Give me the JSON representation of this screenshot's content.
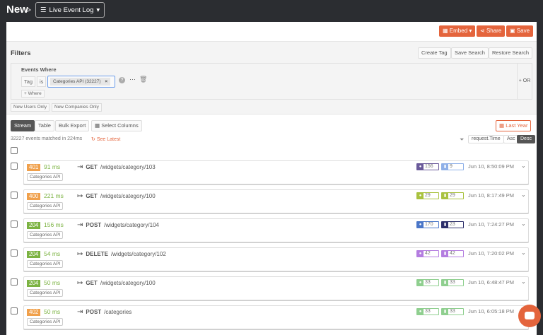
{
  "header": {
    "title": "New",
    "separator": ">",
    "view": "Live Event Log"
  },
  "toolbar": {
    "embed": "Embed",
    "share": "Share",
    "save": "Save"
  },
  "filters": {
    "title": "Filters",
    "create_tag": "Create Tag",
    "save_search": "Save Search",
    "restore_search": "Restore Search",
    "events_where": "Events Where",
    "field": "Tag",
    "op": "is",
    "value": "Categories API (32227)",
    "add_where": "+ Where",
    "or": "+ OR",
    "new_users": "New Users Only",
    "new_companies": "New Companies Only"
  },
  "views": {
    "stream": "Stream",
    "table": "Table",
    "bulk_export": "Bulk Export",
    "select_columns": "Select Columns",
    "date_range": "Last Year"
  },
  "summary": {
    "matched": "32227 events matched in 224ms",
    "see_latest": "See Latest",
    "sort_field": "request.Time",
    "asc": "Asc",
    "desc": "Desc"
  },
  "colors": {
    "accent": "#e4643c",
    "status_4xx": "#f0a04b",
    "status_2xx": "#7cb342"
  },
  "events": [
    {
      "status": "401",
      "duration": "91 ms",
      "direction": "incoming",
      "method": "GET",
      "path": "/widgets/category/103",
      "tag": "Categories API",
      "users": "156",
      "companies": "9",
      "user_color": "#6a5a9a",
      "company_color": "#8fb0e8",
      "time": "Jun 10, 8:50:09 PM"
    },
    {
      "status": "400",
      "duration": "221 ms",
      "direction": "outgoing",
      "method": "GET",
      "path": "/widgets/category/100",
      "tag": "Categories API",
      "users": "29",
      "companies": "29",
      "user_color": "#a9c23f",
      "company_color": "#a9c23f",
      "time": "Jun 10, 8:17:49 PM"
    },
    {
      "status": "204",
      "duration": "156 ms",
      "direction": "incoming",
      "method": "POST",
      "path": "/widgets/category/104",
      "tag": "Categories API",
      "users": "170",
      "companies": "23",
      "user_color": "#4a76c8",
      "company_color": "#2d2f6b",
      "time": "Jun 10, 7:24:27 PM"
    },
    {
      "status": "204",
      "duration": "54 ms",
      "direction": "outgoing",
      "method": "DELETE",
      "path": "/widgets/category/102",
      "tag": "Categories API",
      "users": "42",
      "companies": "42",
      "user_color": "#b47de0",
      "company_color": "#b47de0",
      "time": "Jun 10, 7:20:02 PM"
    },
    {
      "status": "204",
      "duration": "50 ms",
      "direction": "outgoing",
      "method": "GET",
      "path": "/widgets/category/100",
      "tag": "Categories API",
      "users": "33",
      "companies": "33",
      "user_color": "#8fcf8f",
      "company_color": "#8fcf8f",
      "time": "Jun 10, 6:48:47 PM"
    },
    {
      "status": "402",
      "duration": "50 ms",
      "direction": "incoming",
      "method": "POST",
      "path": "/categories",
      "tag": "Categories API",
      "users": "33",
      "companies": "33",
      "user_color": "#8fcf8f",
      "company_color": "#8fcf8f",
      "time": "Jun 10, 6:05:18 PM"
    }
  ]
}
